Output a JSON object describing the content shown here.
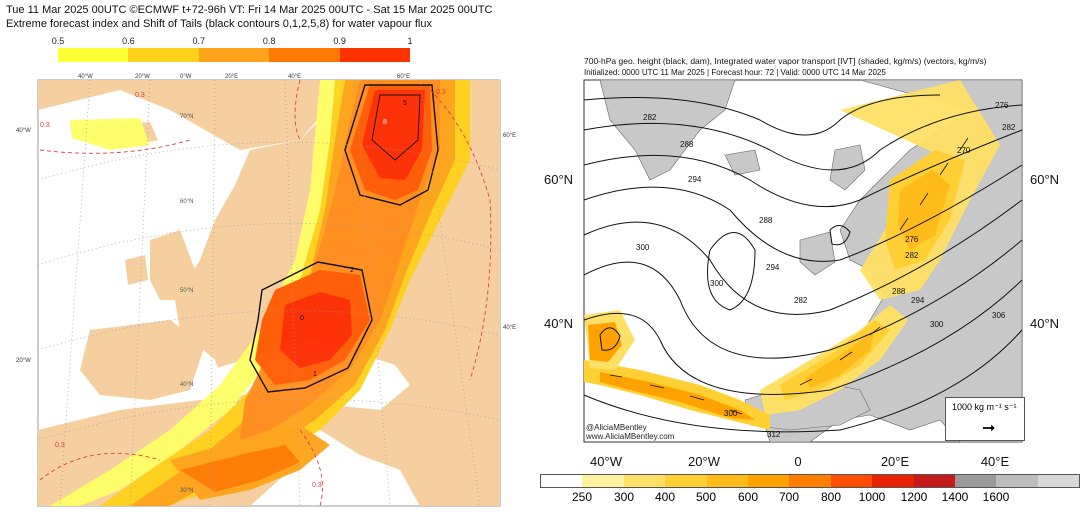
{
  "left": {
    "header_line1": "Tue 11 Mar 2025 00UTC ©ECMWF t+72-96h  VT: Fri 14 Mar 2025 00UTC - Sat 15 Mar 2025 00UTC",
    "header_line2": "Extreme forecast index and Shift of Tails (black contours 0,1,2,5,8) for water vapour flux",
    "colorbar": {
      "ticks": [
        "0.5",
        "0.6",
        "0.7",
        "0.8",
        "0.9",
        "1"
      ],
      "colors": [
        "#ffff33",
        "#ffd21a",
        "#ffa31a",
        "#ff7a00",
        "#ff3300"
      ]
    },
    "lon_labels": [
      "40°W",
      "20°W",
      "0°W",
      "20°E",
      "40°E",
      "60°E"
    ],
    "lat_labels": [
      "70°N",
      "60°N",
      "50°N",
      "40°N",
      "30°N"
    ],
    "side_labels": [
      "40°W",
      "20°W",
      "60°E",
      "40°E"
    ],
    "contour_labels": [
      "0.3",
      "0.3",
      "0.3",
      "0.3",
      "0.3"
    ],
    "sot_labels": [
      "8",
      "5",
      "2",
      "1",
      "0"
    ]
  },
  "right": {
    "header_line1": "700-hPa geo. height (black, dam), Integrated water vapor transport [IVT] (shaded, kg/m/s) (vectors, kg/m/s)",
    "header_line2": "Initialized: 0000 UTC 11 Mar 2025 | Forecast hour: 72 | Valid: 0000 UTC 14 Mar 2025",
    "lat_labels_left": [
      "60°N",
      "40°N"
    ],
    "lat_labels_right": [
      "60°N",
      "40°N"
    ],
    "lon_labels": [
      "40°W",
      "20°W",
      "0",
      "20°E",
      "40°E"
    ],
    "height_labels": [
      "282",
      "288",
      "294",
      "300",
      "288",
      "282",
      "294",
      "300",
      "276",
      "282",
      "270",
      "276",
      "282",
      "288",
      "294",
      "300",
      "306",
      "312",
      "300"
    ],
    "vector_legend_label": "1000 kg m⁻¹ s⁻¹",
    "vector_legend_arrow": "➞",
    "credit_line1": "@AliciaMBentley",
    "credit_line2": "www.AliciaMBentley.com",
    "colorbar": {
      "ticks": [
        "250",
        "300",
        "400",
        "500",
        "600",
        "700",
        "800",
        "1000",
        "1200",
        "1400",
        "1600"
      ],
      "colors": [
        "#ffffff",
        "#fff3a0",
        "#ffe066",
        "#ffd033",
        "#ffbb1a",
        "#ffa200",
        "#ff7d00",
        "#ff4e00",
        "#e62200",
        "#c41a1a",
        "#9a9a9a",
        "#bdbdbd",
        "#d8d8d8"
      ]
    }
  }
}
